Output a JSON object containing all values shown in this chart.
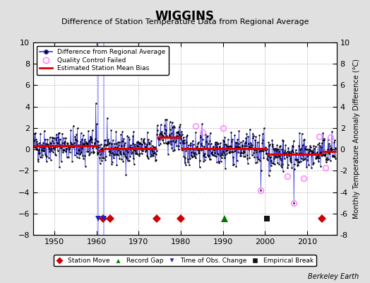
{
  "title": "WIGGINS",
  "subtitle": "Difference of Station Temperature Data from Regional Average",
  "ylabel_right": "Monthly Temperature Anomaly Difference (°C)",
  "ylim": [
    -8,
    10
  ],
  "xlim": [
    1945,
    2017
  ],
  "yticks": [
    -8,
    -6,
    -4,
    -2,
    0,
    2,
    4,
    6,
    8,
    10
  ],
  "xticks": [
    1950,
    1960,
    1970,
    1980,
    1990,
    2000,
    2010
  ],
  "background_color": "#e0e0e0",
  "plot_bg_color": "#ffffff",
  "grid_color": "#b0b0b0",
  "data_line_color": "#3333cc",
  "data_marker_color": "#000000",
  "qc_fail_color": "#ff88ff",
  "bias_line_color": "#dd0000",
  "station_move_color": "#cc0000",
  "record_gap_color": "#007700",
  "obs_change_color": "#2222bb",
  "empirical_break_color": "#111111",
  "watermark": "Berkeley Earth",
  "legend_labels": [
    "Difference from Regional Average",
    "Quality Control Failed",
    "Estimated Station Mean Bias"
  ],
  "bottom_legend_labels": [
    "Station Move",
    "Record Gap",
    "Time of Obs. Change",
    "Empirical Break"
  ],
  "bias_segments": [
    {
      "x": [
        1945.0,
        1960.4
      ],
      "y": [
        0.35,
        0.35
      ]
    },
    {
      "x": [
        1960.4,
        1961.7
      ],
      "y": [
        -0.15,
        -0.15
      ]
    },
    {
      "x": [
        1961.7,
        1974.3
      ],
      "y": [
        0.05,
        0.05
      ]
    },
    {
      "x": [
        1974.3,
        1980.0
      ],
      "y": [
        1.15,
        1.15
      ]
    },
    {
      "x": [
        1980.0,
        1990.3
      ],
      "y": [
        0.1,
        0.1
      ]
    },
    {
      "x": [
        1990.3,
        2000.5
      ],
      "y": [
        0.05,
        0.05
      ]
    },
    {
      "x": [
        2000.5,
        2013.5
      ],
      "y": [
        -0.45,
        -0.45
      ]
    },
    {
      "x": [
        2013.5,
        2016.8
      ],
      "y": [
        -0.2,
        -0.2
      ]
    }
  ],
  "vertical_lines": [
    {
      "x": 1960.4,
      "color": "#aaaaff",
      "lw": 1.2
    },
    {
      "x": 1961.7,
      "color": "#aaaaff",
      "lw": 1.2
    }
  ],
  "station_moves": [
    1961.5,
    1963.2,
    1974.3,
    1980.0,
    2013.5
  ],
  "record_gaps": [
    1990.3
  ],
  "obs_changes": [
    1960.4,
    1961.7
  ],
  "empirical_breaks": [
    2000.5
  ],
  "qc_fail_pts": [
    [
      1983.5,
      2.2
    ],
    [
      1985.2,
      1.6
    ],
    [
      1990.0,
      2.0
    ],
    [
      1999.0,
      -3.8
    ],
    [
      2005.3,
      -2.5
    ],
    [
      2006.8,
      -5.0
    ],
    [
      2009.2,
      -2.7
    ],
    [
      2012.8,
      1.2
    ],
    [
      2014.3,
      -1.7
    ],
    [
      2015.5,
      1.1
    ]
  ],
  "big_spikes": [
    [
      1957.3,
      -1.6
    ],
    [
      1959.8,
      4.3
    ],
    [
      1999.0,
      -3.8
    ],
    [
      2006.8,
      -5.0
    ]
  ],
  "seed": 42
}
